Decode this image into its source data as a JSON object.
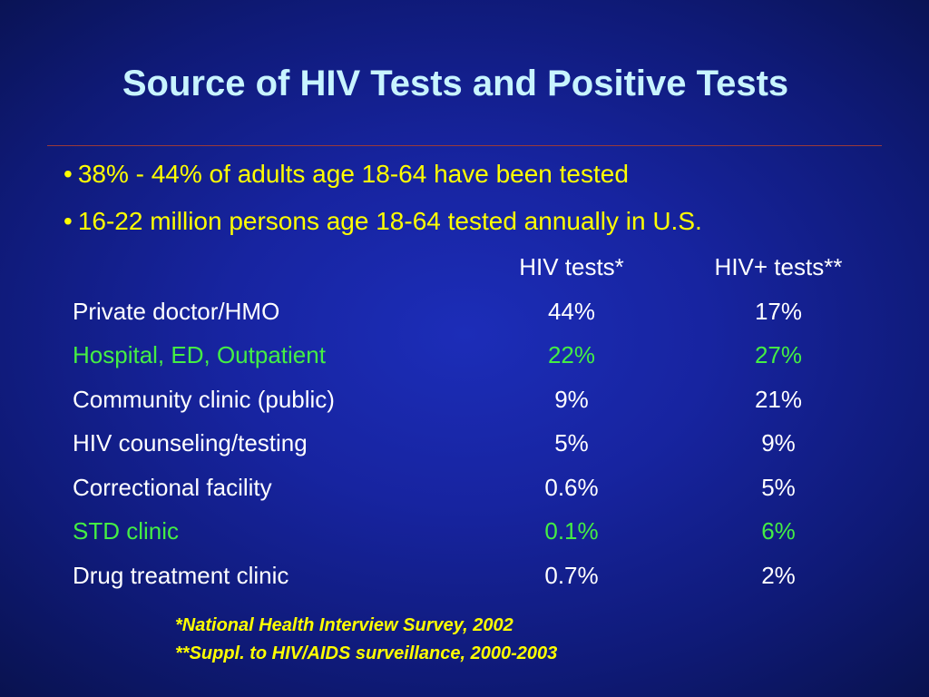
{
  "colors": {
    "title": "#c8f4ff",
    "bullet": "#ffff00",
    "header": "#ffffff",
    "row_default": "#ffffff",
    "row_highlight": "#44ee44",
    "footnote": "#ffff00"
  },
  "title": "Source of HIV Tests and Positive Tests",
  "bullets": [
    "38% - 44% of adults age 18-64 have been tested",
    "16-22 million persons age 18-64 tested annually in U.S."
  ],
  "bullet_symbol": "•",
  "table": {
    "headers": [
      "",
      "HIV tests*",
      "HIV+ tests**"
    ],
    "rows": [
      {
        "label": "Private doctor/HMO",
        "hiv": "44%",
        "pos": "17%",
        "highlight": false
      },
      {
        "label": "Hospital, ED, Outpatient",
        "hiv": "22%",
        "pos": "27%",
        "highlight": true
      },
      {
        "label": "Community clinic (public)",
        "hiv": "9%",
        "pos": "21%",
        "highlight": false
      },
      {
        "label": "HIV counseling/testing",
        "hiv": "5%",
        "pos": "9%",
        "highlight": false
      },
      {
        "label": "Correctional facility",
        "hiv": "0.6%",
        "pos": "5%",
        "highlight": false
      },
      {
        "label": "STD clinic",
        "hiv": "0.1%",
        "pos": "6%",
        "highlight": true
      },
      {
        "label": "Drug treatment clinic",
        "hiv": "0.7%",
        "pos": "2%",
        "highlight": false
      }
    ]
  },
  "footnotes": [
    "*National Health Interview Survey, 2002",
    "**Suppl. to HIV/AIDS surveillance, 2000-2003"
  ]
}
